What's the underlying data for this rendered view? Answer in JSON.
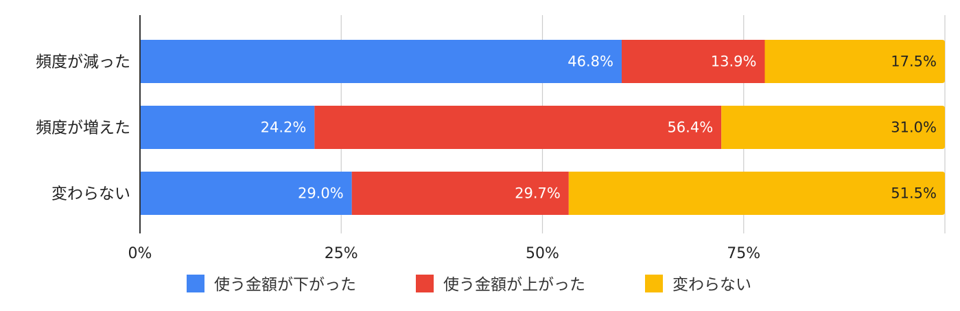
{
  "chart_data": {
    "type": "bar",
    "orientation": "horizontal",
    "stacked": "percent",
    "categories": [
      "頻度が減った",
      "頻度が増えた",
      "変わらない"
    ],
    "series": [
      {
        "name": "使う金額が下がった",
        "color": "#4285F4",
        "label_color": "#FFFFFF",
        "values": [
          46.8,
          24.2,
          29.0
        ],
        "labels": [
          "46.8%",
          "24.2%",
          "29.0%"
        ]
      },
      {
        "name": "使う金額が上がった",
        "color": "#EA4335",
        "label_color": "#FFFFFF",
        "values": [
          13.9,
          56.4,
          29.7
        ],
        "labels": [
          "13.9%",
          "56.4%",
          "29.7%"
        ]
      },
      {
        "name": "変わらない",
        "color": "#FBBC04",
        "label_color": "#222222",
        "values": [
          17.5,
          31.0,
          51.5
        ],
        "labels": [
          "17.5%",
          "31.0%",
          "51.5%"
        ]
      }
    ],
    "xlim": [
      0,
      100
    ],
    "x_ticks": [
      0,
      25,
      50,
      75
    ],
    "x_tick_labels": [
      "0%",
      "25%",
      "50%",
      "75%"
    ],
    "grid": true,
    "legend_position": "bottom",
    "title": "",
    "xlabel": "",
    "ylabel": ""
  }
}
